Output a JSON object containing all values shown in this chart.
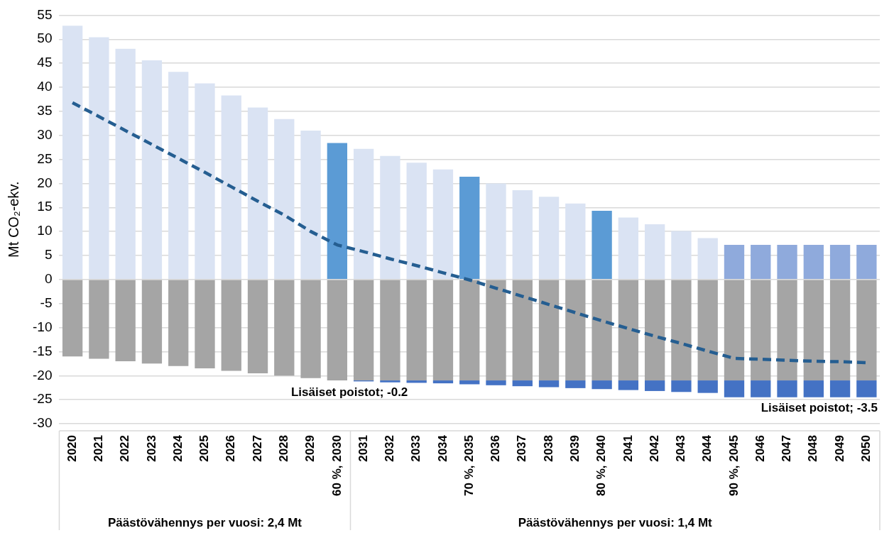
{
  "chart_data": {
    "type": "bar",
    "ylabel": "Mt CO₂-ekv.",
    "stacked": true,
    "grid": "y",
    "legend": false,
    "categories": [
      "2020",
      "2021",
      "2022",
      "2023",
      "2024",
      "2025",
      "2026",
      "2027",
      "2028",
      "2029",
      "60 %, 2030",
      "2031",
      "2032",
      "2033",
      "2034",
      "70 %, 2035",
      "2036",
      "2037",
      "2038",
      "2039",
      "80 %, 2040",
      "2041",
      "2042",
      "2043",
      "2044",
      "90 %, 2045",
      "2046",
      "2047",
      "2048",
      "2049",
      "2050"
    ],
    "ylim": [
      -30,
      55
    ],
    "yticks": [
      -30,
      -25,
      -20,
      -15,
      -10,
      -5,
      0,
      5,
      10,
      15,
      20,
      25,
      30,
      35,
      40,
      45,
      50,
      55
    ],
    "series": [
      {
        "colors": [
          "#dae3f3",
          "#dae3f3",
          "#dae3f3",
          "#dae3f3",
          "#dae3f3",
          "#dae3f3",
          "#dae3f3",
          "#dae3f3",
          "#dae3f3",
          "#dae3f3",
          "#5b9bd5",
          "#dae3f3",
          "#dae3f3",
          "#dae3f3",
          "#dae3f3",
          "#5b9bd5",
          "#dae3f3",
          "#dae3f3",
          "#dae3f3",
          "#dae3f3",
          "#5b9bd5",
          "#dae3f3",
          "#dae3f3",
          "#dae3f3",
          "#dae3f3",
          "#8faadc",
          "#8faadc",
          "#8faadc",
          "#8faadc",
          "#8faadc",
          "#8faadc"
        ],
        "values": [
          52.8,
          50.4,
          48.0,
          45.6,
          43.2,
          40.8,
          38.3,
          35.8,
          33.4,
          31.0,
          28.4,
          27.2,
          25.7,
          24.3,
          22.9,
          21.4,
          20.0,
          18.6,
          17.2,
          15.8,
          14.3,
          12.9,
          11.5,
          10.1,
          8.6,
          7.2,
          7.2,
          7.2,
          7.2,
          7.2,
          7.2
        ]
      },
      {
        "color": "#a5a5a5",
        "values": [
          -16.0,
          -16.5,
          -17.0,
          -17.5,
          -18.0,
          -18.5,
          -19.0,
          -19.5,
          -20.0,
          -20.5,
          -21.0,
          -21.0,
          -21.0,
          -21.0,
          -21.0,
          -21.0,
          -21.0,
          -21.0,
          -21.0,
          -21.0,
          -21.0,
          -21.0,
          -21.0,
          -21.0,
          -21.0,
          -21.0,
          -21.0,
          -21.0,
          -21.0,
          -21.0,
          -21.0
        ]
      },
      {
        "color": "#4472c4",
        "values": [
          null,
          null,
          null,
          null,
          null,
          null,
          null,
          null,
          null,
          null,
          null,
          -0.2,
          -0.4,
          -0.5,
          -0.6,
          -0.8,
          -1.0,
          -1.2,
          -1.4,
          -1.6,
          -1.8,
          -2.0,
          -2.2,
          -2.4,
          -2.6,
          -3.5,
          -3.5,
          -3.5,
          -3.5,
          -3.5,
          -3.5
        ]
      },
      {
        "type": "line",
        "color": "#255e91",
        "line_style": "dashed",
        "marker": "none",
        "values": [
          36.8,
          33.9,
          31.0,
          28.1,
          25.2,
          22.3,
          19.3,
          16.3,
          13.4,
          10.0,
          7.2,
          5.8,
          4.3,
          2.9,
          1.4,
          -0.1,
          -1.8,
          -3.5,
          -5.2,
          -6.9,
          -8.6,
          -10.2,
          -11.8,
          -13.3,
          -14.9,
          -16.4,
          -16.6,
          -16.8,
          -17.0,
          -17.1,
          -17.3
        ]
      }
    ],
    "annotations": [
      {
        "text": "Lisäiset poistot; -0.2",
        "x": "2031",
        "y": -21.2
      },
      {
        "text": "Lisäiset poistot; -3.5",
        "x": "2050",
        "y": -24.5
      },
      "Päästövähennys per vuosi: 2,4 Mt",
      "Päästövähennys per vuosi: 1,4 Mt"
    ]
  }
}
